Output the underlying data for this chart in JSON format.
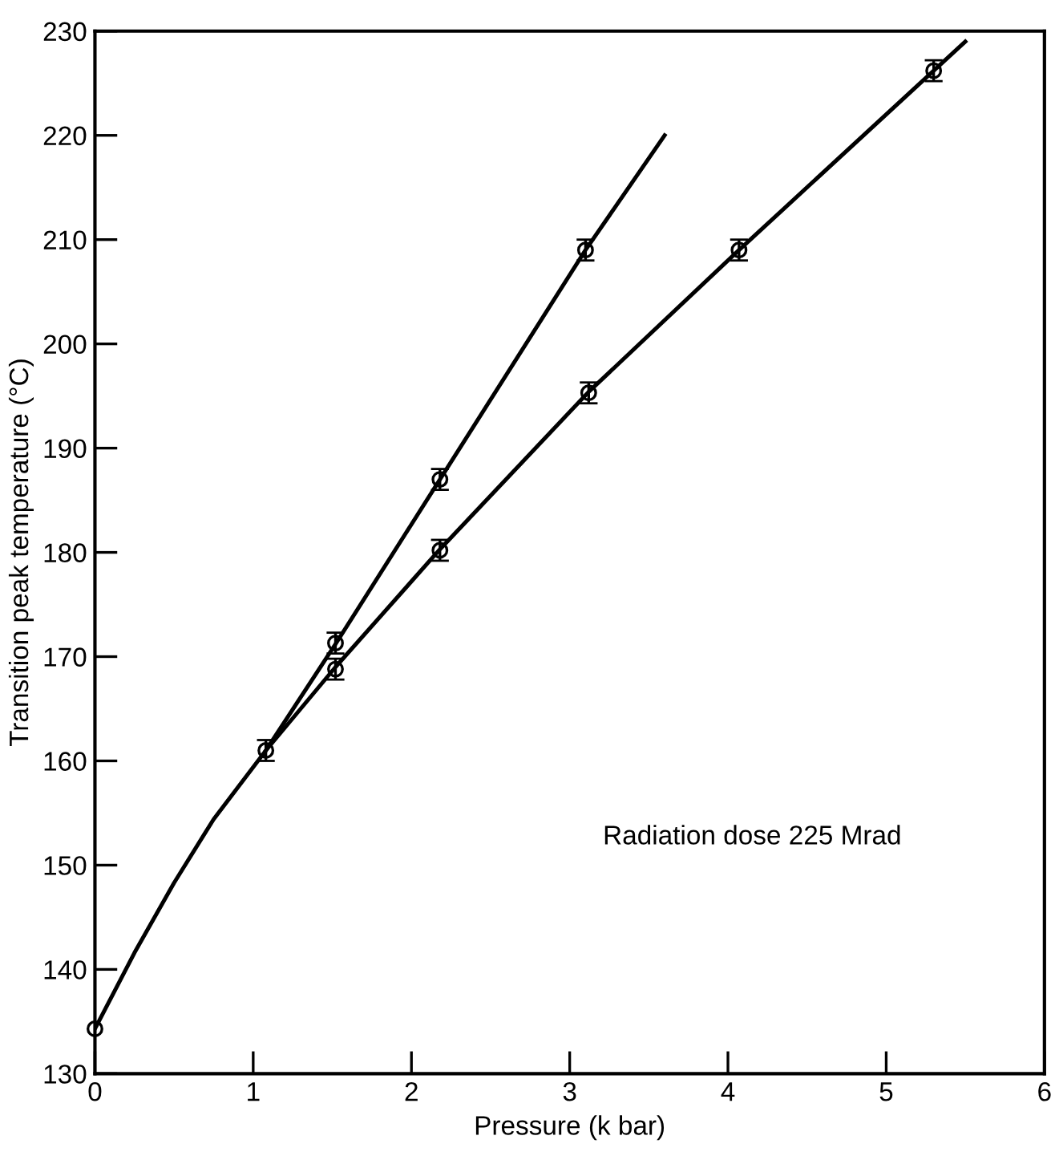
{
  "chart_data": {
    "type": "scatter",
    "xlabel": "Pressure (k bar)",
    "ylabel": "Transition peak temperature (°C)",
    "xlim": [
      0,
      6
    ],
    "ylim": [
      130,
      230
    ],
    "xticks": [
      0,
      1,
      2,
      3,
      4,
      5,
      6
    ],
    "yticks": [
      130,
      140,
      150,
      160,
      170,
      180,
      190,
      200,
      210,
      220,
      230
    ],
    "grid": false,
    "legend": false,
    "marker": "circle",
    "series": [
      {
        "color": "#000000",
        "x": [
          0,
          1.08,
          1.52,
          1.52,
          2.18,
          2.18,
          3.1,
          3.12,
          4.07,
          5.3
        ],
        "values": [
          134.3,
          161,
          168.8,
          171.3,
          187,
          180.2,
          209,
          195.3,
          209,
          226.2
        ],
        "errors": [
          null,
          1,
          1,
          1,
          1,
          1,
          1,
          1,
          1,
          1
        ]
      },
      {
        "type": "line",
        "color": "#000000",
        "marker": "none",
        "line_style": "solid",
        "x": [
          0,
          0.25,
          0.5,
          0.75,
          1.08,
          1.52,
          2.18,
          3.12,
          4.07,
          5.3,
          5.5
        ],
        "values": [
          134.3,
          141.6,
          148.3,
          154.4,
          161,
          169,
          180.3,
          195.4,
          209,
          226.2,
          229
        ]
      },
      {
        "type": "line",
        "color": "#000000",
        "marker": "none",
        "line_style": "solid",
        "x": [
          1.08,
          1.52,
          2.18,
          3.1,
          3.6
        ],
        "values": [
          161,
          171.2,
          187,
          209,
          220
        ]
      }
    ],
    "annotations": [
      "Radiation dose 225 Mrad"
    ]
  }
}
